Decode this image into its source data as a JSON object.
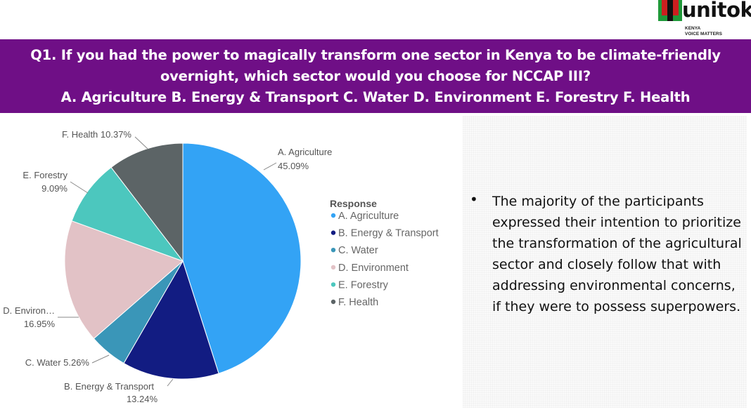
{
  "logo": {
    "name": "unitok",
    "tagline_line1": "KENYA",
    "tagline_line2": "VOICE MATTERS",
    "colors": {
      "black": "#111111",
      "red": "#cc1f1f",
      "green": "#1f9a3a"
    }
  },
  "banner": {
    "background": "#6f0f86",
    "line1": "Q1. If you had the power to magically transform one sector in Kenya to be climate-friendly",
    "line2": "overnight, which sector would you choose for NCCAP III?",
    "line3": "A. Agriculture B. Energy & Transport C. Water D. Environment E. Forestry F. Health"
  },
  "chart_data": {
    "type": "pie",
    "legend_title": "Response",
    "legend_position": "right",
    "slices": [
      {
        "category": "A. Agriculture",
        "value": 45.09,
        "label_line1": "A. Agriculture",
        "label_line2": "45.09%",
        "color": "#33a3f5"
      },
      {
        "category": "B. Energy & Transport",
        "value": 13.24,
        "label_line1": "B. Energy & Transport",
        "label_line2": "13.24%",
        "color": "#121c82"
      },
      {
        "category": "C. Water",
        "value": 5.26,
        "label_line1": "C. Water 5.26%",
        "label_line2": "",
        "color": "#3a96b8"
      },
      {
        "category": "D. Environment",
        "value": 16.95,
        "label_line1": "D. Environ…",
        "label_line2": "16.95%",
        "color": "#e2c2c6"
      },
      {
        "category": "E. Forestry",
        "value": 9.09,
        "label_line1": "E. Forestry",
        "label_line2": "9.09%",
        "color": "#4cc7be"
      },
      {
        "category": "F. Health",
        "value": 10.37,
        "label_line1": "F. Health 10.37%",
        "label_line2": "",
        "color": "#5c6466"
      }
    ]
  },
  "bullet": {
    "text": "The majority of the participants expressed their intention to prioritize the transformation of the agricultural sector and closely follow that with addressing environmental concerns, if they were to possess superpowers."
  }
}
